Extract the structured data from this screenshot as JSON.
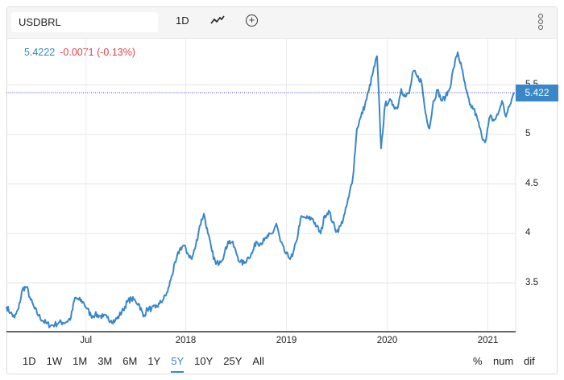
{
  "header": {
    "symbol_value": "USDBRL",
    "interval_label": "1D",
    "chart_type_icon": "line-chart-icon",
    "add_icon": "plus-circle-icon",
    "menu_icon": "kebab-menu-icon"
  },
  "readout": {
    "price": "5.4222",
    "change": "-0.0071 (-0.13%)"
  },
  "price_tag": "5.422",
  "range_buttons": [
    "1D",
    "1W",
    "1M",
    "3M",
    "6M",
    "1Y",
    "5Y",
    "10Y",
    "25Y",
    "All"
  ],
  "selected_range": "5Y",
  "mode_buttons": [
    "%",
    "num",
    "dif"
  ],
  "colors": {
    "line": "#3a87c8",
    "negative": "#e0414b",
    "price_line": "#4040e0"
  },
  "chart_data": {
    "type": "line",
    "title": "USDBRL",
    "series_name": "USDBRL",
    "x_start": 2016.22,
    "x_step": 0.04,
    "values": [
      3.26,
      3.2,
      3.15,
      3.24,
      3.44,
      3.46,
      3.33,
      3.24,
      3.17,
      3.12,
      3.09,
      3.07,
      3.08,
      3.1,
      3.1,
      3.11,
      3.15,
      3.35,
      3.33,
      3.31,
      3.24,
      3.17,
      3.18,
      3.17,
      3.16,
      3.15,
      3.12,
      3.12,
      3.17,
      3.23,
      3.31,
      3.34,
      3.32,
      3.28,
      3.16,
      3.24,
      3.24,
      3.25,
      3.29,
      3.34,
      3.41,
      3.57,
      3.71,
      3.84,
      3.88,
      3.8,
      3.74,
      3.88,
      4.08,
      4.2,
      4.0,
      3.82,
      3.69,
      3.72,
      3.78,
      3.92,
      3.91,
      3.81,
      3.71,
      3.7,
      3.76,
      3.8,
      3.92,
      3.9,
      3.93,
      3.97,
      4.0,
      4.1,
      3.92,
      3.82,
      3.76,
      3.77,
      3.92,
      4.15,
      4.16,
      4.15,
      4.15,
      4.07,
      4.0,
      4.18,
      4.23,
      4.11,
      4.02,
      4.08,
      4.2,
      4.37,
      4.57,
      5.06,
      5.18,
      5.3,
      5.45,
      5.63,
      5.79,
      4.86,
      5.3,
      5.34,
      5.3,
      5.26,
      5.46,
      5.38,
      5.42,
      5.64,
      5.58,
      5.54,
      5.22,
      5.06,
      5.34,
      5.45,
      5.34,
      5.38,
      5.46,
      5.67,
      5.83,
      5.67,
      5.46,
      5.3,
      5.26,
      5.14,
      4.98,
      4.94,
      5.18,
      5.14,
      5.2,
      5.34,
      5.18,
      5.3,
      5.4222
    ],
    "last_value": 5.4222,
    "y_ticks": [
      3.5,
      4,
      4.5,
      5,
      5.5
    ],
    "y_tick_labels": [
      "3.5",
      "4",
      "4.5",
      "5",
      "5.5"
    ],
    "x_ticks": [
      2017.01,
      2018,
      2019,
      2020,
      2021
    ],
    "x_tick_labels": [
      "Jul",
      "2018",
      "2019",
      "2020",
      "2021"
    ],
    "ylim": [
      3.0,
      5.95
    ],
    "grid": true,
    "legend": "none"
  }
}
